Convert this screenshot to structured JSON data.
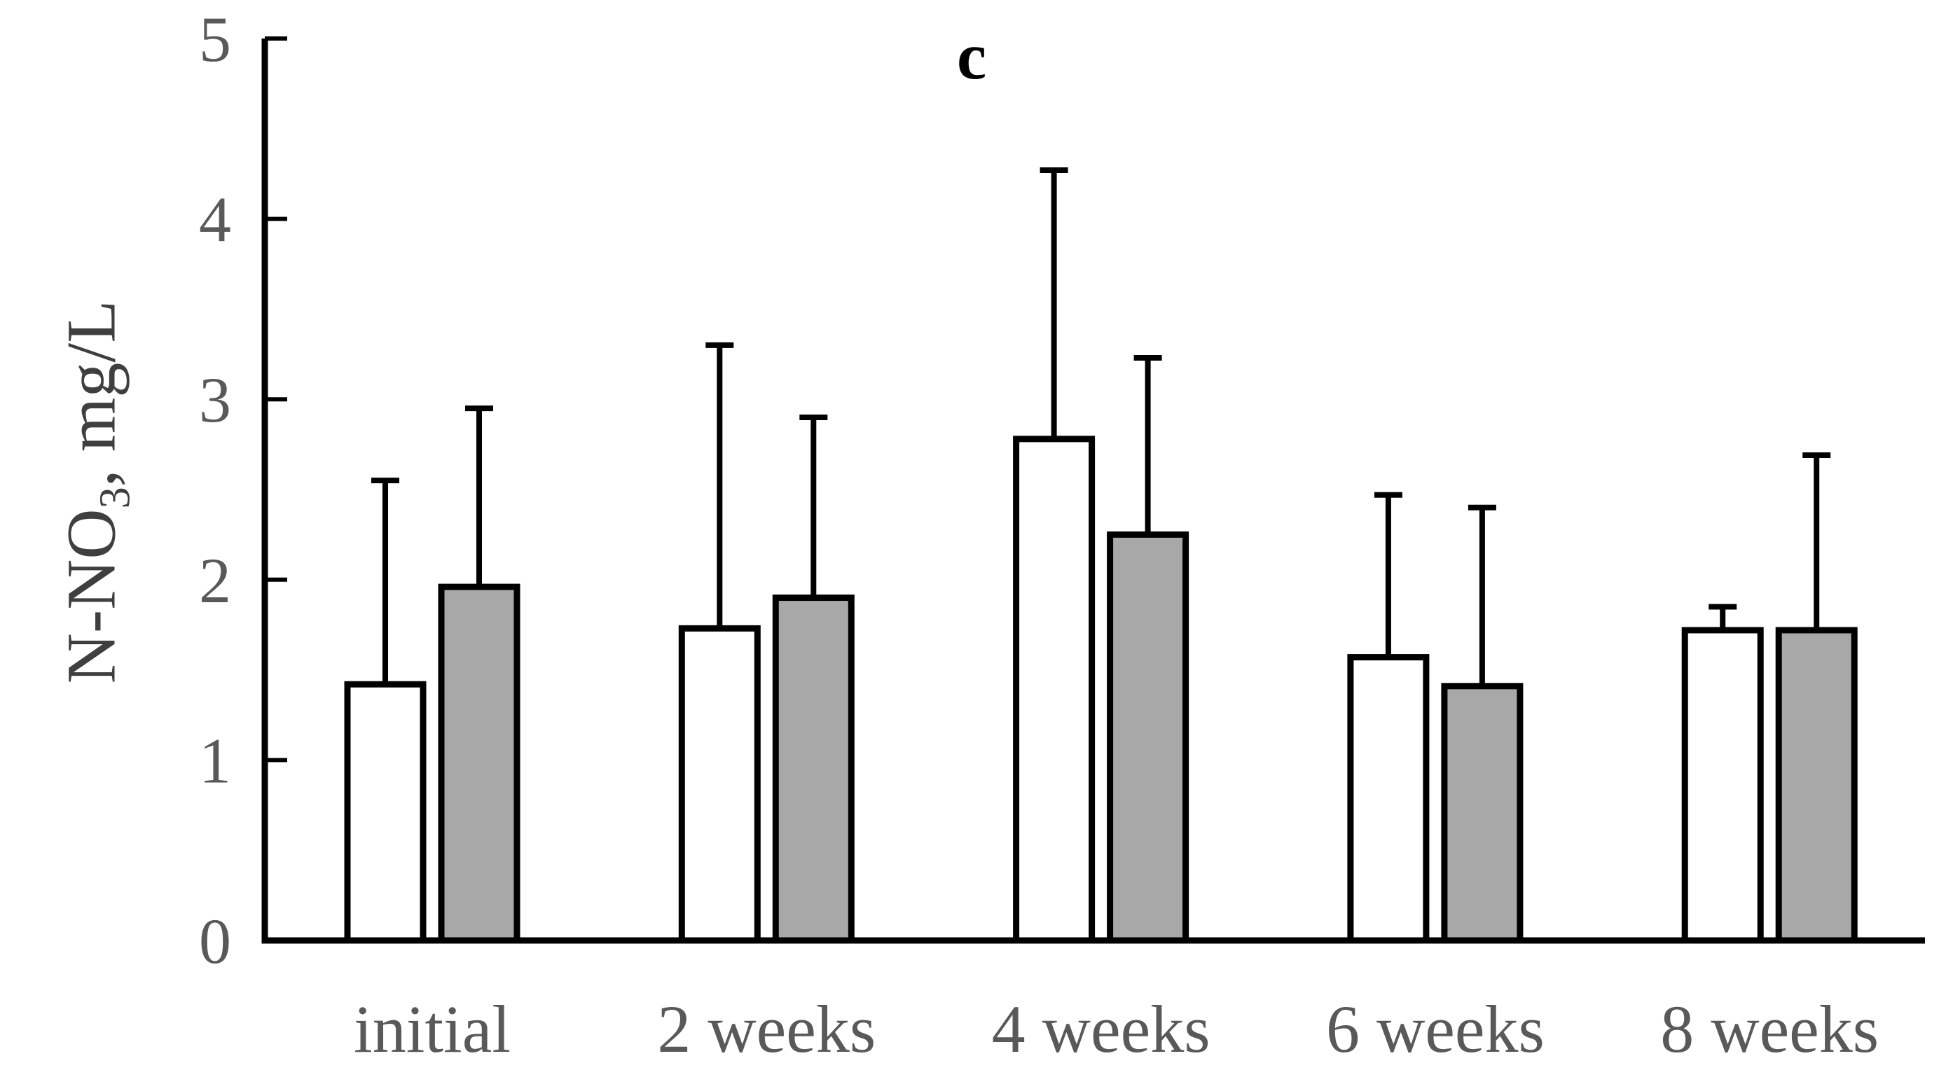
{
  "chart_data": {
    "type": "bar",
    "panel_label": "c",
    "title": "",
    "xlabel": "",
    "ylabel": "N-NO3, mg/L",
    "ylabel_main": "N-NO",
    "ylabel_sub": "3",
    "ylabel_rest": ", mg/L",
    "ylim": [
      0,
      5
    ],
    "yticks": [
      0,
      1,
      2,
      3,
      4,
      5
    ],
    "grid": false,
    "legend": "none",
    "categories": [
      "initial",
      "2 weeks",
      "4 weeks",
      "6 weeks",
      "8 weeks"
    ],
    "series": [
      {
        "name": "white-bars",
        "fill": "#ffffff",
        "values": [
          1.42,
          1.73,
          2.78,
          1.57,
          1.72
        ],
        "error_up": [
          1.13,
          1.57,
          1.49,
          0.9,
          0.13
        ]
      },
      {
        "name": "gray-bars",
        "fill": "#a8a8a8",
        "values": [
          1.96,
          1.9,
          2.25,
          1.41,
          1.72
        ],
        "error_up": [
          0.99,
          1.0,
          0.98,
          0.99,
          0.97
        ]
      }
    ],
    "colors": {
      "axis": "#000000",
      "bar_border": "#000000",
      "error_bar": "#000000",
      "tick_labels": "#595959",
      "category_labels": "#595959",
      "y_title": "#3f3f3f",
      "panel_label": "#000000"
    }
  }
}
